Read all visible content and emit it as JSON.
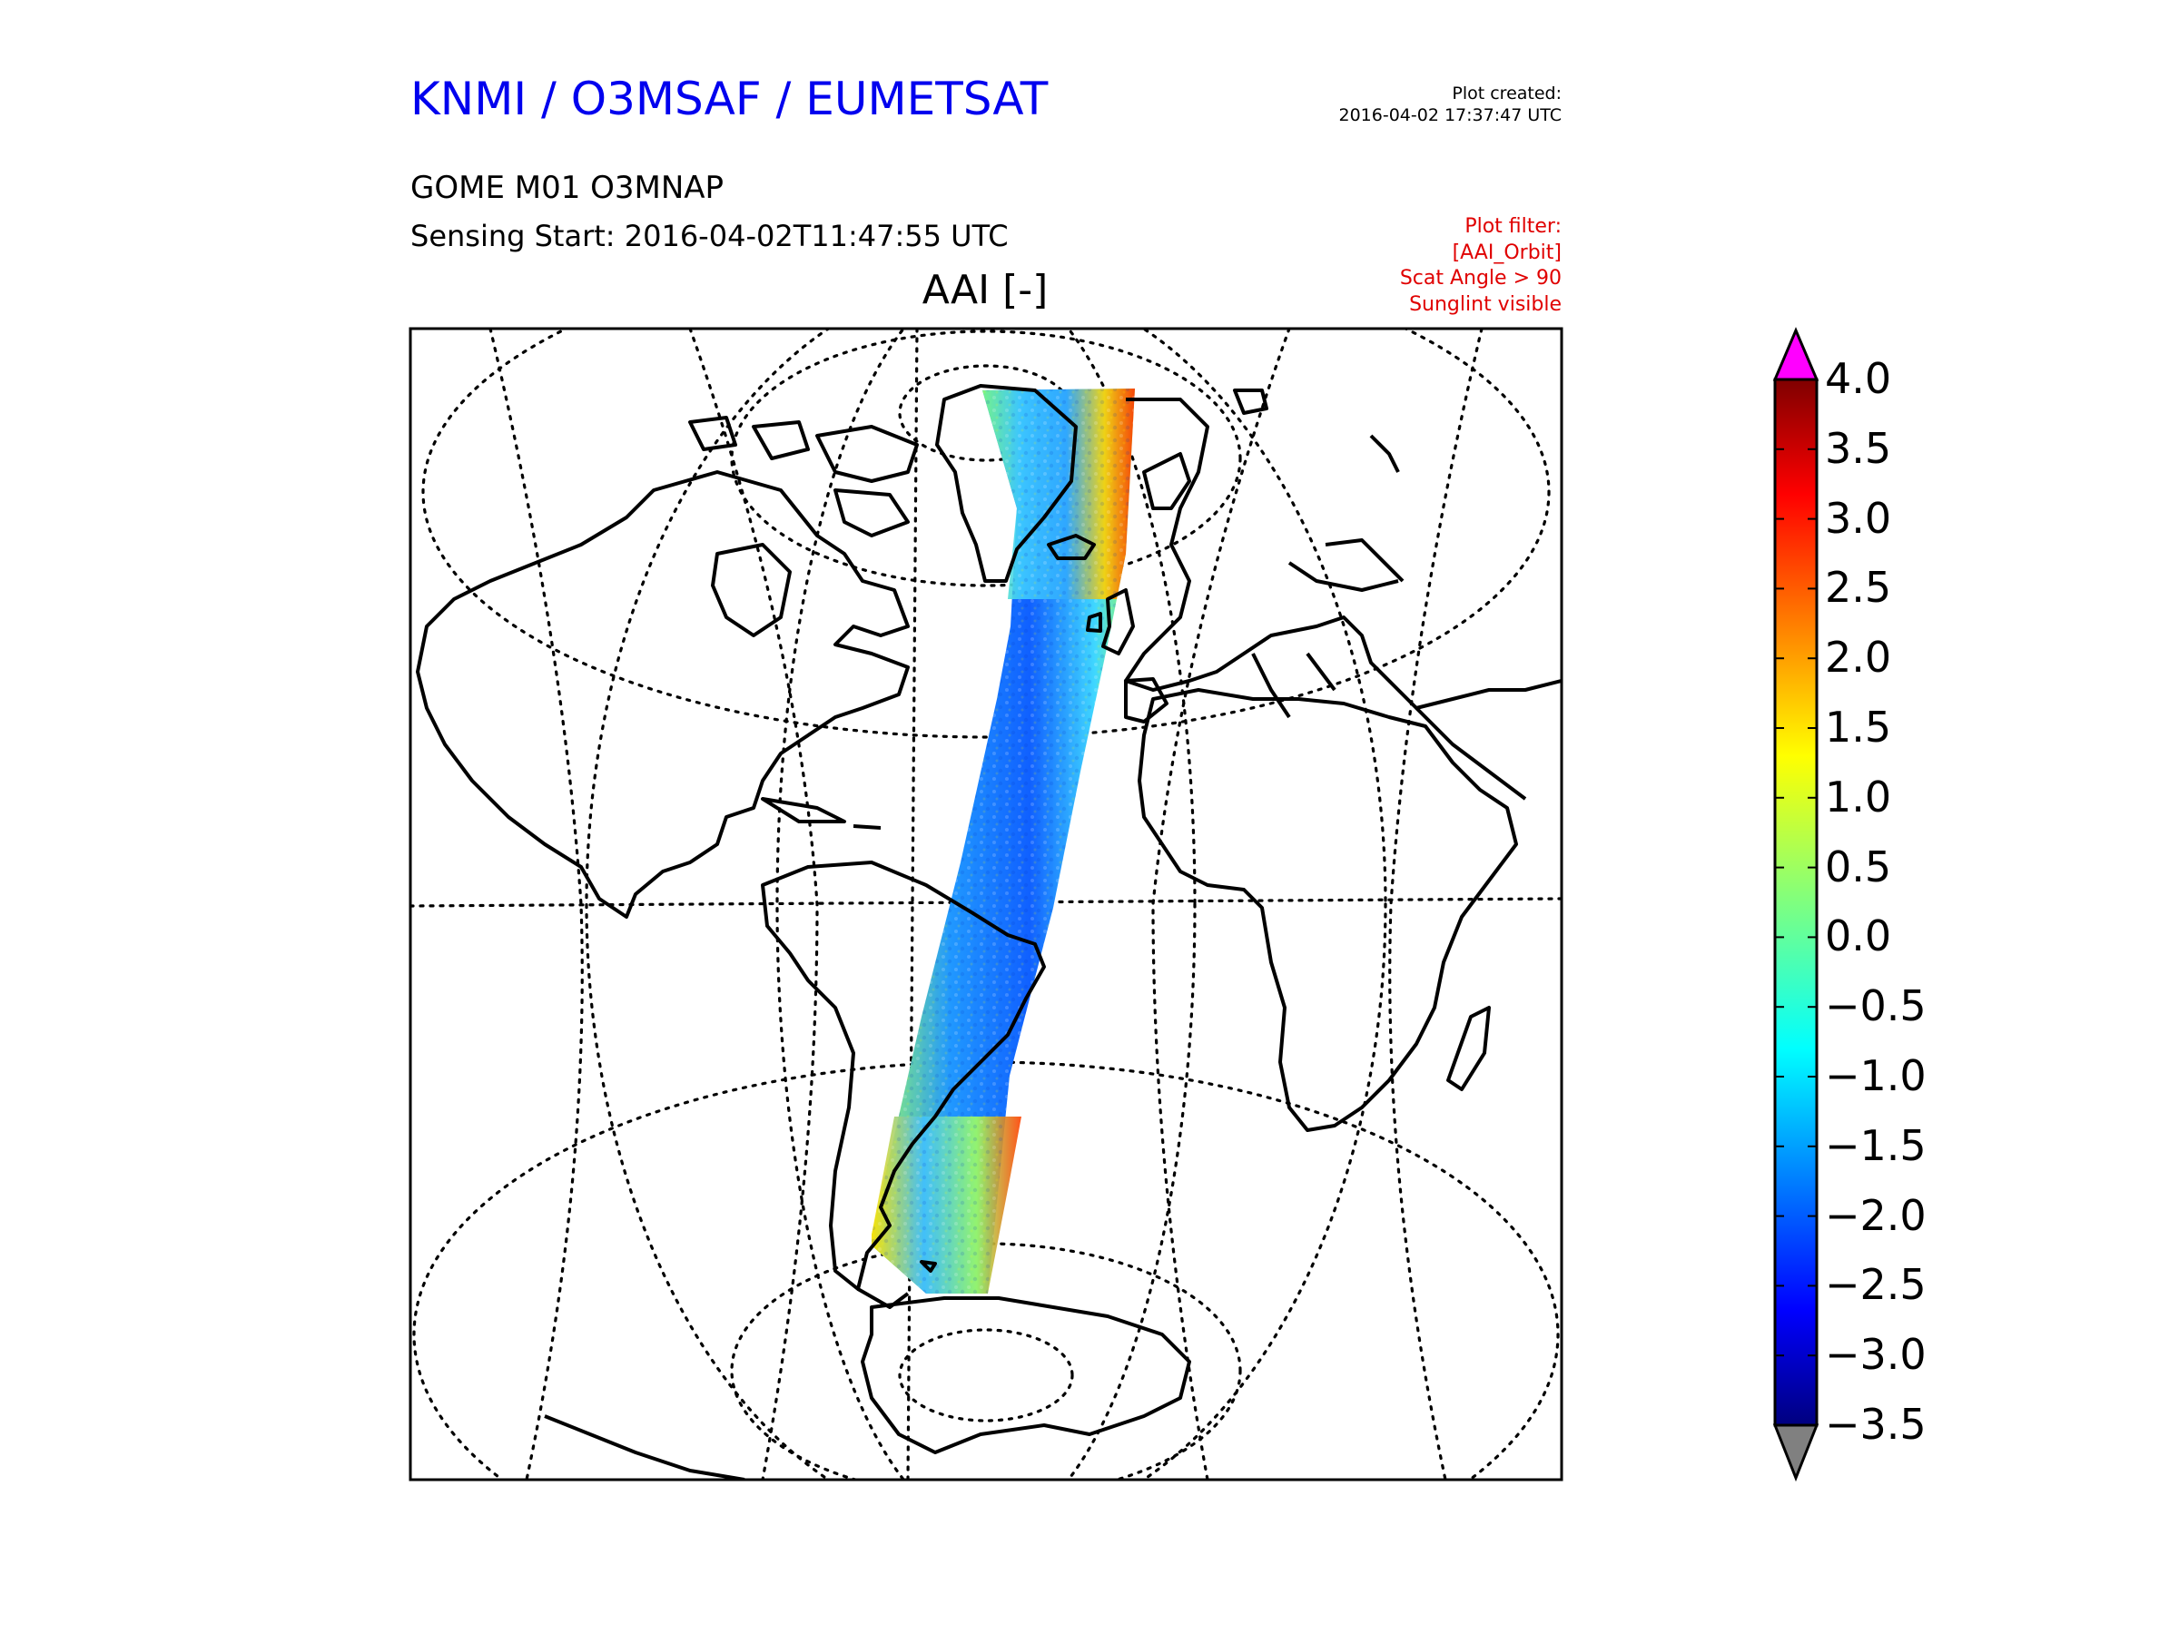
{
  "header": {
    "org_title": "KNMI / O3MSAF / EUMETSAT",
    "product": "GOME M01 O3MNAP",
    "sensing_start": "Sensing Start: 2016-04-02T11:47:55 UTC",
    "plot_created_label": "Plot created:",
    "plot_created_time": "2016-04-02 17:37:47 UTC"
  },
  "filter": {
    "lines": [
      "Plot filter:",
      "[AAI_Orbit]",
      "Scat Angle > 90",
      "Sunglint visible"
    ],
    "color": "#e00000"
  },
  "map": {
    "title": "AAI [-]",
    "projection": "orthographic",
    "coastline_color": "#000000",
    "graticule": "dotted"
  },
  "colorbar": {
    "colormap": "jet",
    "min": -3.5,
    "max": 4.0,
    "over_color": "#ff00ff",
    "under_color": "#808080",
    "ticks": [
      "4.0",
      "3.5",
      "3.0",
      "2.5",
      "2.0",
      "1.5",
      "1.0",
      "0.5",
      "0.0",
      "−0.5",
      "−1.0",
      "−1.5",
      "−2.0",
      "−2.5",
      "−3.0",
      "−3.5"
    ]
  }
}
